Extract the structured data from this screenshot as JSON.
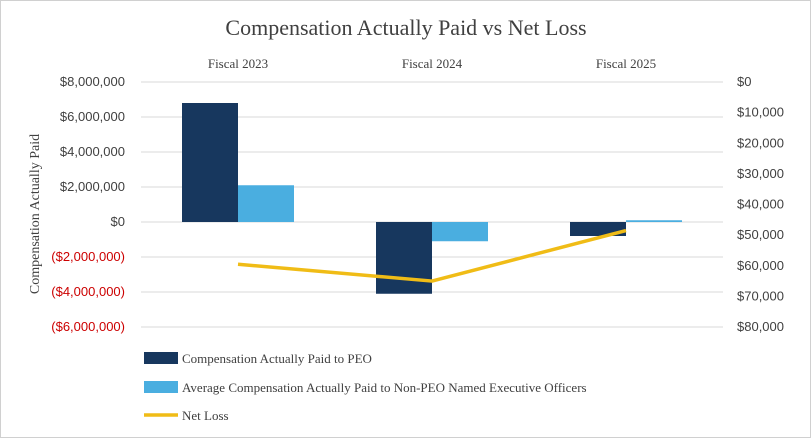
{
  "chart_data": {
    "type": "bar",
    "title": "Compensation Actually Paid vs Net Loss",
    "categories": [
      "Fiscal 2023",
      "Fiscal 2024",
      "Fiscal 2025"
    ],
    "ylabel": "Compensation Actually Paid",
    "ylim": [
      -6000000,
      8000000
    ],
    "y_ticks": [
      8000000,
      6000000,
      4000000,
      2000000,
      0,
      -2000000,
      -4000000,
      -6000000
    ],
    "y_tick_labels": [
      "$8,000,000",
      "$6,000,000",
      "$4,000,000",
      "$2,000,000",
      "$0",
      "($2,000,000)",
      "($4,000,000)",
      "($6,000,000)"
    ],
    "y2lim": [
      0,
      80000
    ],
    "y2_inverted": true,
    "y2_ticks": [
      0,
      10000,
      20000,
      30000,
      40000,
      50000,
      60000,
      70000,
      80000
    ],
    "y2_tick_labels": [
      "$0",
      "$10,000",
      "$20,000",
      "$30,000",
      "$40,000",
      "$50,000",
      "$60,000",
      "$70,000",
      "$80,000"
    ],
    "grid": true,
    "legend_position": "bottom-left",
    "series": [
      {
        "name": "Compensation Actually Paid to PEO",
        "type": "bar",
        "axis": "left",
        "color": "#17375e",
        "values": [
          6800000,
          -4100000,
          -800000
        ]
      },
      {
        "name": "Average Compensation Actually Paid to Non-PEO Named Executive Officers",
        "type": "bar",
        "axis": "left",
        "color": "#4aaee0",
        "values": [
          2100000,
          -1100000,
          100000
        ]
      },
      {
        "name": "Net Loss",
        "type": "line",
        "axis": "right",
        "color": "#f0bc16",
        "values": [
          59500,
          65000,
          48500
        ]
      }
    ]
  }
}
